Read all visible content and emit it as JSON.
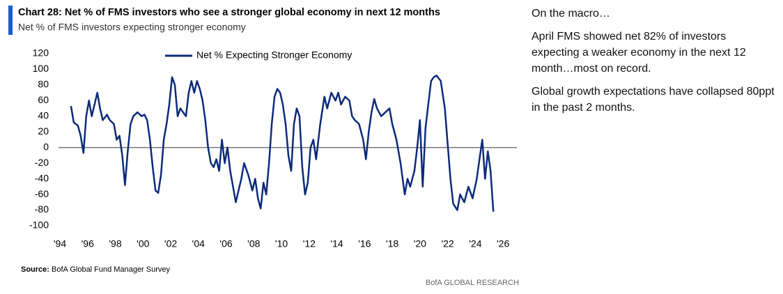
{
  "chart_data": {
    "type": "line",
    "title": "Chart 28: Net % of FMS investors who see a stronger global economy in next 12 months",
    "subtitle": "Net % of FMS investors expecting stronger economy",
    "x": [
      1994.8,
      1995.0,
      1995.3,
      1995.5,
      1995.7,
      1995.9,
      1996.1,
      1996.3,
      1996.5,
      1996.7,
      1996.9,
      1997.1,
      1997.4,
      1997.6,
      1997.9,
      1998.1,
      1998.3,
      1998.5,
      1998.7,
      1998.9,
      1999.1,
      1999.3,
      1999.6,
      1999.9,
      2000.1,
      2000.3,
      2000.5,
      2000.7,
      2000.9,
      2001.1,
      2001.3,
      2001.5,
      2001.7,
      2001.9,
      2002.1,
      2002.3,
      2002.5,
      2002.7,
      2002.9,
      2003.1,
      2003.3,
      2003.5,
      2003.7,
      2003.9,
      2004.1,
      2004.3,
      2004.5,
      2004.7,
      2004.9,
      2005.1,
      2005.3,
      2005.5,
      2005.7,
      2005.9,
      2006.1,
      2006.3,
      2006.5,
      2006.7,
      2006.9,
      2007.1,
      2007.3,
      2007.6,
      2007.9,
      2008.1,
      2008.3,
      2008.5,
      2008.7,
      2008.9,
      2009.1,
      2009.3,
      2009.5,
      2009.7,
      2009.9,
      2010.1,
      2010.3,
      2010.5,
      2010.7,
      2010.9,
      2011.1,
      2011.3,
      2011.5,
      2011.7,
      2011.9,
      2012.1,
      2012.3,
      2012.5,
      2012.8,
      2013.1,
      2013.3,
      2013.6,
      2013.9,
      2014.1,
      2014.3,
      2014.6,
      2014.9,
      2015.1,
      2015.3,
      2015.6,
      2015.9,
      2016.1,
      2016.3,
      2016.5,
      2016.7,
      2016.9,
      2017.2,
      2017.5,
      2017.8,
      2018.0,
      2018.3,
      2018.6,
      2018.9,
      2019.1,
      2019.3,
      2019.6,
      2019.8,
      2020.0,
      2020.2,
      2020.4,
      2020.6,
      2020.8,
      2021.0,
      2021.2,
      2021.5,
      2021.8,
      2022.0,
      2022.2,
      2022.4,
      2022.7,
      2022.9,
      2023.2,
      2023.5,
      2023.8,
      2024.1,
      2024.3,
      2024.5,
      2024.7,
      2024.9,
      2025.1,
      2025.3
    ],
    "series": [
      {
        "name": "Net % Expecting Stronger Economy",
        "color": "#0b2a7a",
        "values": [
          53,
          32,
          28,
          15,
          -7,
          40,
          60,
          40,
          55,
          70,
          50,
          35,
          42,
          35,
          30,
          10,
          15,
          -10,
          -48,
          -5,
          30,
          40,
          45,
          40,
          42,
          35,
          10,
          -25,
          -55,
          -58,
          -35,
          10,
          30,
          55,
          90,
          80,
          40,
          50,
          45,
          40,
          70,
          85,
          70,
          85,
          75,
          60,
          35,
          0,
          -20,
          -25,
          -15,
          -30,
          10,
          -20,
          0,
          -30,
          -50,
          -70,
          -55,
          -40,
          -20,
          -35,
          -55,
          -40,
          -65,
          -78,
          -45,
          -60,
          -20,
          30,
          65,
          75,
          70,
          55,
          30,
          -10,
          -30,
          30,
          50,
          40,
          -25,
          -60,
          -45,
          0,
          10,
          -15,
          30,
          65,
          50,
          70,
          60,
          70,
          55,
          65,
          60,
          40,
          35,
          30,
          10,
          -15,
          20,
          45,
          62,
          50,
          40,
          45,
          50,
          30,
          10,
          -20,
          -60,
          -40,
          -50,
          -30,
          0,
          35,
          -50,
          25,
          55,
          85,
          90,
          92,
          85,
          50,
          5,
          -40,
          -72,
          -80,
          -60,
          -70,
          -50,
          -65,
          -40,
          -15,
          10,
          -40,
          -5,
          -30,
          -82
        ]
      }
    ],
    "xlim": [
      1994,
      2027
    ],
    "ylim": [
      -100,
      120
    ],
    "yticks": [
      -100,
      -80,
      -60,
      -40,
      -20,
      0,
      20,
      40,
      60,
      80,
      100,
      120
    ],
    "xticks": [
      {
        "value": 1994,
        "label": "'94"
      },
      {
        "value": 1996,
        "label": "'96"
      },
      {
        "value": 1998,
        "label": "'98"
      },
      {
        "value": 2000,
        "label": "'00"
      },
      {
        "value": 2002,
        "label": "'02"
      },
      {
        "value": 2004,
        "label": "'04"
      },
      {
        "value": 2006,
        "label": "'06"
      },
      {
        "value": 2008,
        "label": "'08"
      },
      {
        "value": 2010,
        "label": "'10"
      },
      {
        "value": 2012,
        "label": "'12"
      },
      {
        "value": 2014,
        "label": "'14"
      },
      {
        "value": 2016,
        "label": "'16"
      },
      {
        "value": 2018,
        "label": "'18"
      },
      {
        "value": 2020,
        "label": "'20"
      },
      {
        "value": 2022,
        "label": "'22"
      },
      {
        "value": 2024,
        "label": "'24"
      },
      {
        "value": 2026,
        "label": "'26"
      }
    ],
    "source_label": "Source:",
    "source": "BofA Global Fund Manager Survey",
    "brand": "BofA GLOBAL RESEARCH"
  },
  "side_panel": {
    "heading": "On the macro…",
    "paragraphs": [
      "April FMS showed net 82% of investors expecting a weaker economy in the next 12 month…most on record.",
      "Global growth expectations have collapsed 80ppt in the past 2 months."
    ]
  }
}
